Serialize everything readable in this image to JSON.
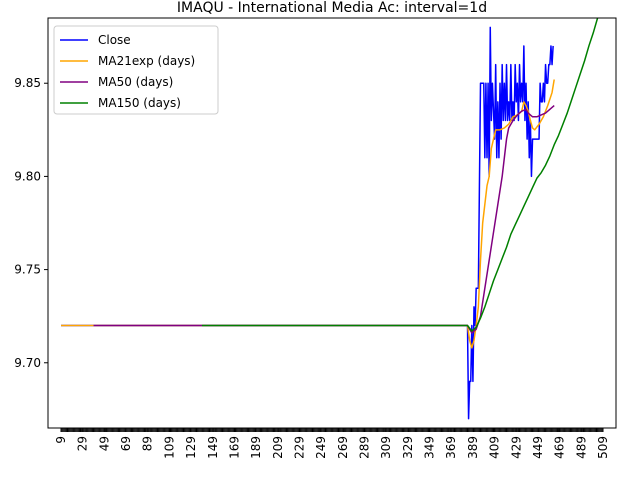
{
  "chart_data": {
    "type": "line",
    "title": "IMAQU - International Media Ac: interval=1d",
    "xlabel": "",
    "ylabel": "",
    "xlim": [
      -3,
      521
    ],
    "ylim": [
      9.665,
      9.885
    ],
    "x_ticks": [
      9,
      29,
      49,
      69,
      89,
      109,
      129,
      149,
      169,
      189,
      209,
      229,
      249,
      269,
      289,
      309,
      329,
      349,
      369,
      389,
      409,
      429,
      449,
      469,
      489,
      509
    ],
    "y_ticks": [
      9.7,
      9.75,
      9.8,
      9.85
    ],
    "y_tick_labels": [
      "9.70",
      "9.75",
      "9.80",
      "9.85"
    ],
    "grid": false,
    "legend_position": "upper-left",
    "series": [
      {
        "name": "Close",
        "color": "#0000ff",
        "points": [
          [
            9,
            9.72
          ],
          [
            384,
            9.72
          ],
          [
            385,
            9.67
          ],
          [
            386,
            9.69
          ],
          [
            387,
            9.69
          ],
          [
            388,
            9.72
          ],
          [
            389,
            9.69
          ],
          [
            390,
            9.73
          ],
          [
            391,
            9.72
          ],
          [
            392,
            9.74
          ],
          [
            394,
            9.74
          ],
          [
            396,
            9.85
          ],
          [
            399,
            9.85
          ],
          [
            400,
            9.81
          ],
          [
            401,
            9.85
          ],
          [
            402,
            9.81
          ],
          [
            403,
            9.85
          ],
          [
            404,
            9.8
          ],
          [
            405,
            9.88
          ],
          [
            406,
            9.83
          ],
          [
            407,
            9.85
          ],
          [
            409,
            9.82
          ],
          [
            410,
            9.86
          ],
          [
            411,
            9.81
          ],
          [
            412,
            9.84
          ],
          [
            413,
            9.81
          ],
          [
            414,
            9.85
          ],
          [
            415,
            9.82
          ],
          [
            416,
            9.86
          ],
          [
            417,
            9.83
          ],
          [
            418,
            9.85
          ],
          [
            419,
            9.83
          ],
          [
            420,
            9.86
          ],
          [
            421,
            9.83
          ],
          [
            422,
            9.84
          ],
          [
            423,
            9.83
          ],
          [
            424,
            9.86
          ],
          [
            425,
            9.83
          ],
          [
            426,
            9.84
          ],
          [
            427,
            9.83
          ],
          [
            428,
            9.86
          ],
          [
            429,
            9.84
          ],
          [
            430,
            9.85
          ],
          [
            431,
            9.83
          ],
          [
            432,
            9.86
          ],
          [
            433,
            9.84
          ],
          [
            434,
            9.85
          ],
          [
            435,
            9.84
          ],
          [
            436,
            9.87
          ],
          [
            437,
            9.83
          ],
          [
            438,
            9.85
          ],
          [
            439,
            9.82
          ],
          [
            440,
            9.84
          ],
          [
            441,
            9.81
          ],
          [
            442,
            9.83
          ],
          [
            443,
            9.8
          ],
          [
            444,
            9.82
          ],
          [
            450,
            9.82
          ],
          [
            451,
            9.85
          ],
          [
            452,
            9.84
          ],
          [
            453,
            9.84
          ],
          [
            454,
            9.85
          ],
          [
            455,
            9.84
          ],
          [
            456,
            9.86
          ],
          [
            457,
            9.85
          ],
          [
            458,
            9.85
          ],
          [
            459,
            9.86
          ],
          [
            460,
            9.86
          ],
          [
            461,
            9.87
          ],
          [
            462,
            9.86
          ],
          [
            463,
            9.87
          ]
        ]
      },
      {
        "name": "MA21exp (days)",
        "color": "#ffa500",
        "points": [
          [
            9,
            9.72
          ],
          [
            384,
            9.72
          ],
          [
            386,
            9.712
          ],
          [
            388,
            9.708
          ],
          [
            390,
            9.712
          ],
          [
            392,
            9.72
          ],
          [
            394,
            9.73
          ],
          [
            396,
            9.755
          ],
          [
            398,
            9.775
          ],
          [
            400,
            9.785
          ],
          [
            402,
            9.795
          ],
          [
            404,
            9.8
          ],
          [
            406,
            9.815
          ],
          [
            408,
            9.82
          ],
          [
            410,
            9.825
          ],
          [
            414,
            9.825
          ],
          [
            418,
            9.826
          ],
          [
            422,
            9.828
          ],
          [
            426,
            9.832
          ],
          [
            430,
            9.833
          ],
          [
            434,
            9.835
          ],
          [
            436,
            9.84
          ],
          [
            438,
            9.838
          ],
          [
            440,
            9.835
          ],
          [
            442,
            9.83
          ],
          [
            444,
            9.826
          ],
          [
            446,
            9.825
          ],
          [
            450,
            9.828
          ],
          [
            454,
            9.832
          ],
          [
            458,
            9.838
          ],
          [
            462,
            9.845
          ],
          [
            464,
            9.852
          ]
        ]
      },
      {
        "name": "MA50 (days)",
        "color": "#800080",
        "points": [
          [
            39,
            9.72
          ],
          [
            384,
            9.72
          ],
          [
            388,
            9.716
          ],
          [
            392,
            9.718
          ],
          [
            396,
            9.725
          ],
          [
            400,
            9.74
          ],
          [
            404,
            9.755
          ],
          [
            408,
            9.77
          ],
          [
            412,
            9.785
          ],
          [
            416,
            9.8
          ],
          [
            418,
            9.81
          ],
          [
            420,
            9.82
          ],
          [
            422,
            9.826
          ],
          [
            426,
            9.83
          ],
          [
            430,
            9.833
          ],
          [
            434,
            9.835
          ],
          [
            438,
            9.836
          ],
          [
            440,
            9.834
          ],
          [
            444,
            9.832
          ],
          [
            448,
            9.832
          ],
          [
            452,
            9.833
          ],
          [
            456,
            9.834
          ],
          [
            460,
            9.836
          ],
          [
            464,
            9.838
          ]
        ]
      },
      {
        "name": "MA150 (days)",
        "color": "#008000",
        "points": [
          [
            139,
            9.72
          ],
          [
            384,
            9.72
          ],
          [
            388,
            9.717
          ],
          [
            392,
            9.719
          ],
          [
            396,
            9.724
          ],
          [
            400,
            9.73
          ],
          [
            404,
            9.737
          ],
          [
            408,
            9.744
          ],
          [
            412,
            9.75
          ],
          [
            416,
            9.756
          ],
          [
            420,
            9.762
          ],
          [
            424,
            9.769
          ],
          [
            428,
            9.774
          ],
          [
            432,
            9.779
          ],
          [
            436,
            9.784
          ],
          [
            440,
            9.789
          ],
          [
            444,
            9.794
          ],
          [
            448,
            9.799
          ],
          [
            452,
            9.802
          ],
          [
            456,
            9.806
          ],
          [
            460,
            9.811
          ],
          [
            464,
            9.817
          ],
          [
            468,
            9.822
          ],
          [
            472,
            9.828
          ],
          [
            476,
            9.834
          ],
          [
            480,
            9.841
          ],
          [
            484,
            9.848
          ],
          [
            488,
            9.855
          ],
          [
            492,
            9.862
          ],
          [
            496,
            9.87
          ],
          [
            500,
            9.877
          ],
          [
            504,
            9.885
          ]
        ]
      }
    ]
  }
}
